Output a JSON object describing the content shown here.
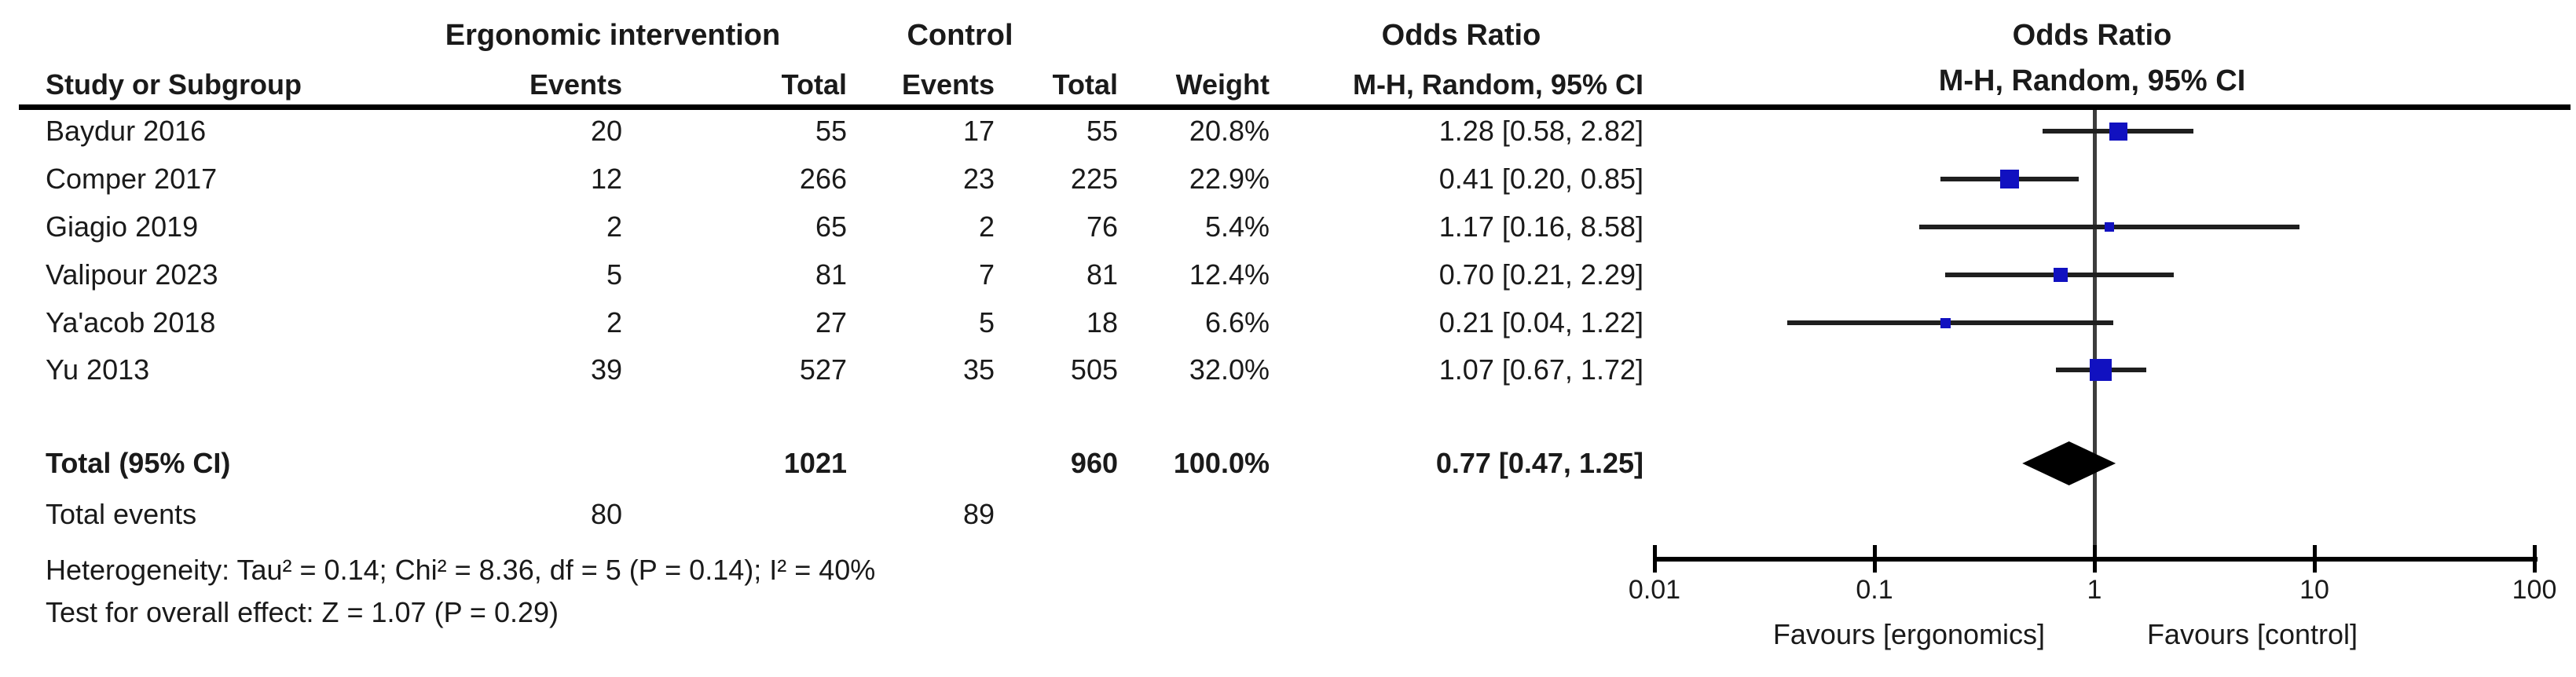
{
  "table": {
    "group1_header": "Ergonomic intervention",
    "group2_header": "Control",
    "or_col_header": "Odds Ratio",
    "col_headers": {
      "study": "Study or Subgroup",
      "events1": "Events",
      "total1": "Total",
      "events2": "Events",
      "total2": "Total",
      "weight": "Weight",
      "mh": "M-H, Random, 95% CI"
    },
    "rows": [
      {
        "name": "Baydur 2016",
        "events1": "20",
        "total1": "55",
        "events2": "17",
        "total2": "55",
        "weight": "20.8%",
        "or_ci": "1.28 [0.58, 2.82]"
      },
      {
        "name": "Comper 2017",
        "events1": "12",
        "total1": "266",
        "events2": "23",
        "total2": "225",
        "weight": "22.9%",
        "or_ci": "0.41 [0.20, 0.85]"
      },
      {
        "name": "Giagio 2019",
        "events1": "2",
        "total1": "65",
        "events2": "2",
        "total2": "76",
        "weight": "5.4%",
        "or_ci": "1.17 [0.16, 8.58]"
      },
      {
        "name": "Valipour 2023",
        "events1": "5",
        "total1": "81",
        "events2": "7",
        "total2": "81",
        "weight": "12.4%",
        "or_ci": "0.70 [0.21, 2.29]"
      },
      {
        "name": "Ya'acob 2018",
        "events1": "2",
        "total1": "27",
        "events2": "5",
        "total2": "18",
        "weight": "6.6%",
        "or_ci": "0.21 [0.04, 1.22]"
      },
      {
        "name": "Yu 2013",
        "events1": "39",
        "total1": "527",
        "events2": "35",
        "total2": "505",
        "weight": "32.0%",
        "or_ci": "1.07 [0.67, 1.72]"
      }
    ],
    "total_row": {
      "label": "Total (95% CI)",
      "total1": "1021",
      "total2": "960",
      "weight": "100.0%",
      "or_ci": "0.77 [0.47, 1.25]"
    },
    "total_events_row": {
      "label": "Total events",
      "events1": "80",
      "events2": "89"
    },
    "heterogeneity": "Heterogeneity: Tau² = 0.14; Chi² = 8.36, df = 5 (P = 0.14); I² = 40%",
    "overall_effect": "Test for overall effect: Z = 1.07 (P = 0.29)"
  },
  "plot": {
    "header_line1": "Odds Ratio",
    "header_line2": "M-H, Random, 95% CI",
    "tick_labels": [
      "0.01",
      "0.1",
      "1",
      "10",
      "100"
    ],
    "favours_left": "Favours [ergonomics]",
    "favours_right": "Favours [control]"
  },
  "colors": {
    "marker_blue": "#1111c0",
    "diamond_black": "#000000",
    "ci_line": "#1f1f1f",
    "no_effect_line": "#3d3d3d",
    "axis": "#000000"
  },
  "chart_data": {
    "type": "scatter",
    "subtype": "forest_plot",
    "effect_measure": "Odds Ratio, M-H, Random, 95% CI",
    "x_scale": "log10",
    "xlim": [
      0.01,
      100
    ],
    "x_ticks": [
      0.01,
      0.1,
      1,
      10,
      100
    ],
    "no_effect_value": 1,
    "studies": [
      {
        "name": "Baydur 2016",
        "or": 1.28,
        "ci_low": 0.58,
        "ci_high": 2.82,
        "weight_pct": 20.8
      },
      {
        "name": "Comper 2017",
        "or": 0.41,
        "ci_low": 0.2,
        "ci_high": 0.85,
        "weight_pct": 22.9
      },
      {
        "name": "Giagio 2019",
        "or": 1.17,
        "ci_low": 0.16,
        "ci_high": 8.58,
        "weight_pct": 5.4
      },
      {
        "name": "Valipour 2023",
        "or": 0.7,
        "ci_low": 0.21,
        "ci_high": 2.29,
        "weight_pct": 12.4
      },
      {
        "name": "Ya'acob 2018",
        "or": 0.21,
        "ci_low": 0.04,
        "ci_high": 1.22,
        "weight_pct": 6.6
      },
      {
        "name": "Yu 2013",
        "or": 1.07,
        "ci_low": 0.67,
        "ci_high": 1.72,
        "weight_pct": 32.0
      }
    ],
    "total": {
      "label": "Total (95% CI)",
      "or": 0.77,
      "ci_low": 0.47,
      "ci_high": 1.25,
      "weight_pct": 100.0
    },
    "x_axis_labels": {
      "left": "Favours [ergonomics]",
      "right": "Favours [control]"
    }
  }
}
